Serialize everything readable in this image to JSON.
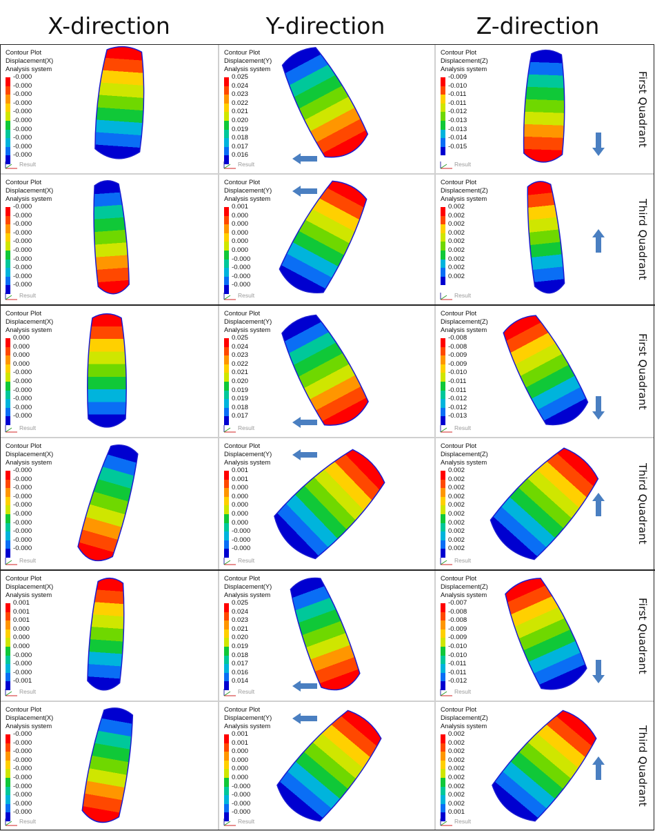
{
  "headers": {
    "x": "X-direction",
    "y": "Y-direction",
    "z": "Z-direction"
  },
  "colors": {
    "scale": [
      "#ff0000",
      "#ff4800",
      "#ff9600",
      "#ffd000",
      "#cfe600",
      "#6fd800",
      "#10c838",
      "#00c89a",
      "#00b4dc",
      "#0a6ef5",
      "#0000d0"
    ],
    "arrow": "#4a7fc1"
  },
  "result_label": "Result",
  "rows": [
    {
      "side_label": "First Quadrant",
      "arrow": "down",
      "cells": [
        {
          "title": "Contour Plot",
          "measure": "Displacement(X)",
          "system": "Analysis system",
          "values": [
            "-0.000",
            "-0.000",
            "-0.000",
            "-0.000",
            "-0.000",
            "-0.000",
            "-0.000",
            "-0.000",
            "-0.000",
            "-0.000"
          ]
        },
        {
          "title": "Contour Plot",
          "measure": "Displacement(Y)",
          "system": "Analysis system",
          "values": [
            "0.025",
            "0.024",
            "0.023",
            "0.022",
            "0.021",
            "0.020",
            "0.019",
            "0.018",
            "0.017",
            "0.016"
          ]
        },
        {
          "title": "Contour Plot",
          "measure": "Displacement(Z)",
          "system": "Analysis system",
          "values": [
            "-0.009",
            "-0.010",
            "-0.011",
            "-0.011",
            "-0.012",
            "-0.013",
            "-0.013",
            "-0.014",
            "-0.015"
          ]
        }
      ]
    },
    {
      "side_label": "Third Quadrant",
      "arrow": "up",
      "cells": [
        {
          "title": "Contour Plot",
          "measure": "Displacement(X)",
          "system": "Analysis system",
          "values": [
            "-0.000",
            "-0.000",
            "-0.000",
            "-0.000",
            "-0.000",
            "-0.000",
            "-0.000",
            "-0.000",
            "-0.000",
            "-0.000"
          ]
        },
        {
          "title": "Contour Plot",
          "measure": "Displacement(Y)",
          "system": "Analysis system",
          "values": [
            "0.001",
            "0.000",
            "0.000",
            "0.000",
            "0.000",
            "0.000",
            "-0.000",
            "-0.000",
            "-0.000",
            "-0.000"
          ]
        },
        {
          "title": "Contour Plot",
          "measure": "Displacement(Z)",
          "system": "Analysis system",
          "values": [
            "0.002",
            "0.002",
            "0.002",
            "0.002",
            "0.002",
            "0.002",
            "0.002",
            "0.002",
            "0.002"
          ]
        }
      ]
    },
    {
      "side_label": "First Quadrant",
      "arrow": "down",
      "cells": [
        {
          "title": "Contour Plot",
          "measure": "Displacement(X)",
          "system": "Analysis system",
          "values": [
            "0.000",
            "0.000",
            "0.000",
            "0.000",
            "-0.000",
            "-0.000",
            "-0.000",
            "-0.000",
            "-0.000",
            "-0.000"
          ]
        },
        {
          "title": "Contour Plot",
          "measure": "Displacement(Y)",
          "system": "Analysis system",
          "values": [
            "0.025",
            "0.024",
            "0.023",
            "0.022",
            "0.021",
            "0.020",
            "0.019",
            "0.019",
            "0.018",
            "0.017"
          ]
        },
        {
          "title": "Contour Plot",
          "measure": "Displacement(Z)",
          "system": "Analysis system",
          "values": [
            "-0.008",
            "-0.008",
            "-0.009",
            "-0.009",
            "-0.010",
            "-0.011",
            "-0.011",
            "-0.012",
            "-0.012",
            "-0.013"
          ]
        }
      ]
    },
    {
      "side_label": "Third Quadrant",
      "arrow": "up",
      "cells": [
        {
          "title": "Contour Plot",
          "measure": "Displacement(X)",
          "system": "Analysis system",
          "values": [
            "-0.000",
            "-0.000",
            "-0.000",
            "-0.000",
            "-0.000",
            "-0.000",
            "-0.000",
            "-0.000",
            "-0.000",
            "-0.000"
          ]
        },
        {
          "title": "Contour Plot",
          "measure": "Displacement(Y)",
          "system": "Analysis system",
          "values": [
            "0.001",
            "0.001",
            "0.000",
            "0.000",
            "0.000",
            "0.000",
            "0.000",
            "-0.000",
            "-0.000",
            "-0.000"
          ]
        },
        {
          "title": "Contour Plot",
          "measure": "Displacement(Z)",
          "system": "Analysis system",
          "values": [
            "0.002",
            "0.002",
            "0.002",
            "0.002",
            "0.002",
            "0.002",
            "0.002",
            "0.002",
            "0.002",
            "0.002"
          ]
        }
      ]
    },
    {
      "side_label": "First Quadrant",
      "arrow": "down",
      "cells": [
        {
          "title": "Contour Plot",
          "measure": "Displacement(X)",
          "system": "Analysis system",
          "values": [
            "0.001",
            "0.001",
            "0.001",
            "0.000",
            "0.000",
            "0.000",
            "-0.000",
            "-0.000",
            "-0.000",
            "-0.001"
          ]
        },
        {
          "title": "Contour Plot",
          "measure": "Displacement(Y)",
          "system": "Analysis system",
          "values": [
            "0.025",
            "0.024",
            "0.023",
            "0.021",
            "0.020",
            "0.019",
            "0.018",
            "0.017",
            "0.016",
            "0.014"
          ]
        },
        {
          "title": "Contour Plot",
          "measure": "Displacement(Z)",
          "system": "Analysis system",
          "values": [
            "-0.007",
            "-0.008",
            "-0.008",
            "-0.009",
            "-0.009",
            "-0.010",
            "-0.010",
            "-0.011",
            "-0.011",
            "-0.012"
          ]
        }
      ]
    },
    {
      "side_label": "Third Quadrant",
      "arrow": "up",
      "cells": [
        {
          "title": "Contour Plot",
          "measure": "Displacement(X)",
          "system": "Analysis system",
          "values": [
            "-0.000",
            "-0.000",
            "-0.000",
            "-0.000",
            "-0.000",
            "-0.000",
            "-0.000",
            "-0.000",
            "-0.000",
            "-0.000"
          ]
        },
        {
          "title": "Contour Plot",
          "measure": "Displacement(Y)",
          "system": "Analysis system",
          "values": [
            "0.001",
            "0.001",
            "0.000",
            "0.000",
            "0.000",
            "0.000",
            "-0.000",
            "-0.000",
            "-0.000",
            "-0.000"
          ]
        },
        {
          "title": "Contour Plot",
          "measure": "Displacement(Z)",
          "system": "Analysis system",
          "values": [
            "0.002",
            "0.002",
            "0.002",
            "0.002",
            "0.002",
            "0.002",
            "0.002",
            "0.002",
            "0.002",
            "0.001"
          ]
        }
      ]
    }
  ]
}
